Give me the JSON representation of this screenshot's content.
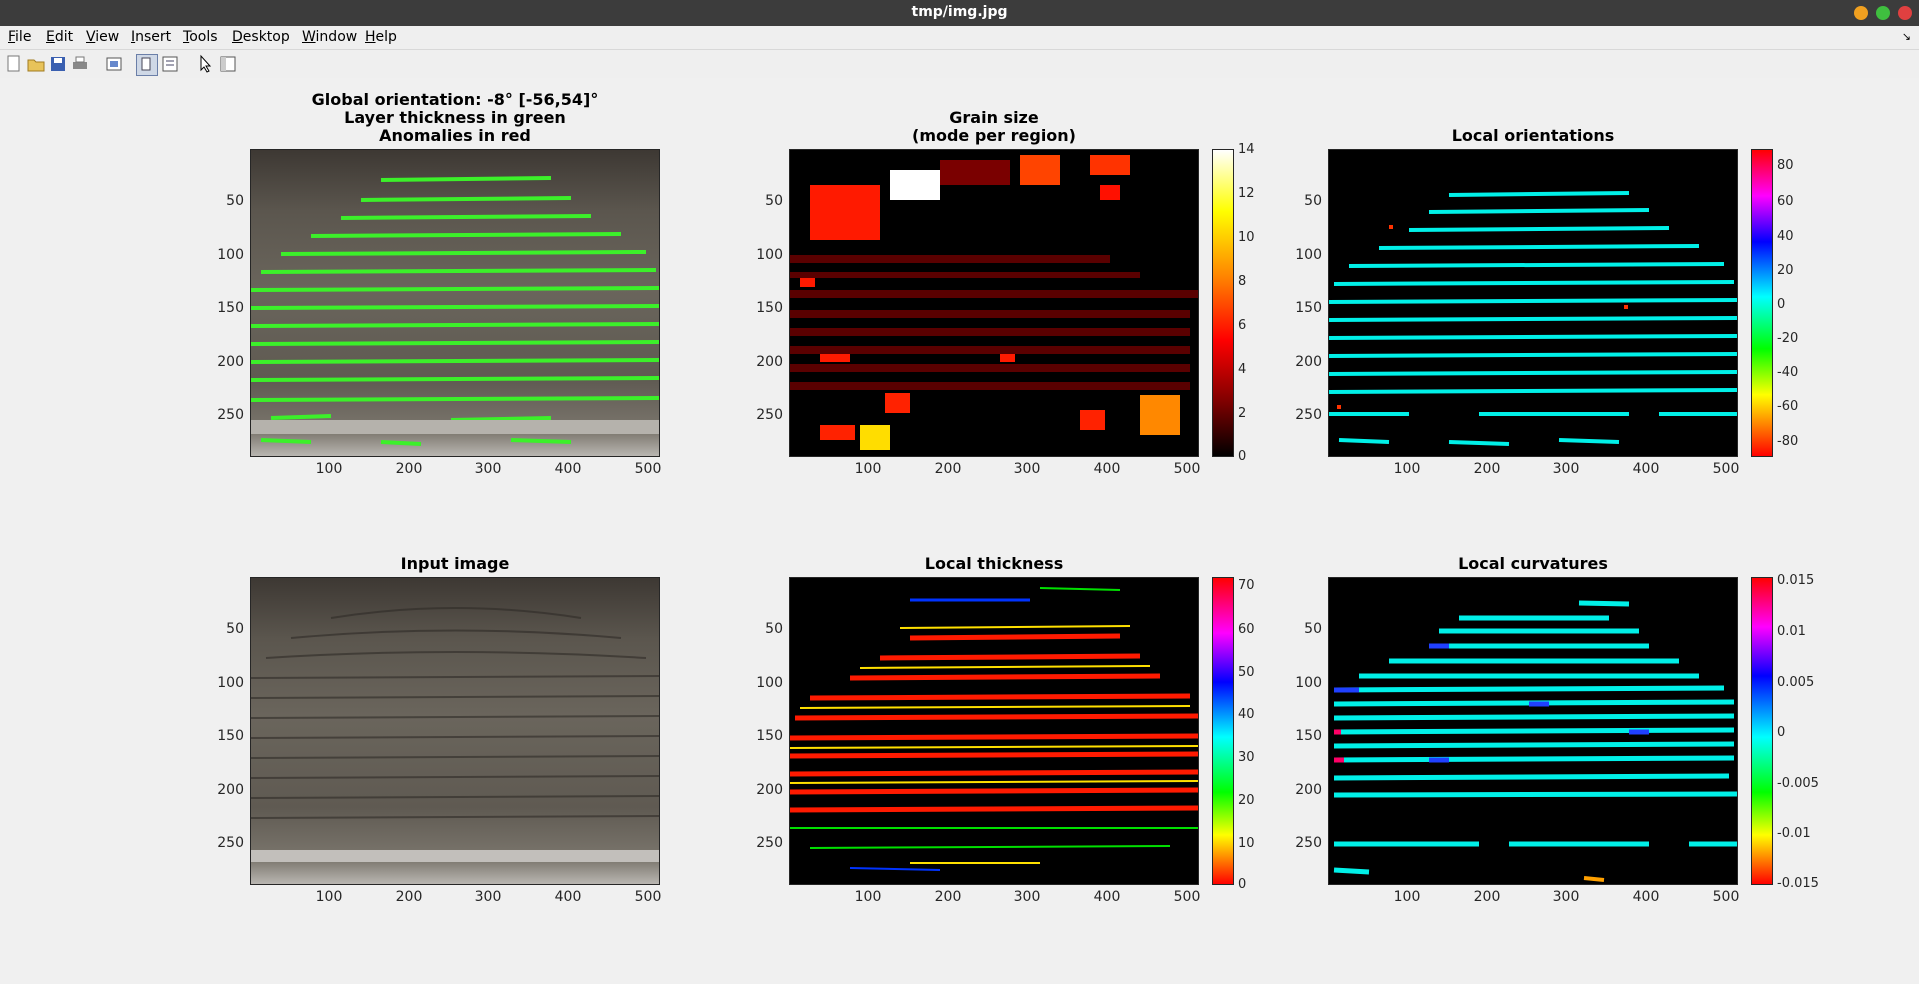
{
  "window": {
    "title": "tmp/img.jpg"
  },
  "menu": [
    "File",
    "Edit",
    "View",
    "Insert",
    "Tools",
    "Desktop",
    "Window",
    "Help"
  ],
  "toolbar": {
    "icons": [
      "new-figure-icon",
      "open-file-icon",
      "save-icon",
      "print-icon",
      "link-plot-icon",
      "dock-icon",
      "property-editor-icon",
      "pointer-icon",
      "browser-icon"
    ]
  },
  "axes": {
    "top_left": {
      "title_lines": [
        "Global orientation: -8° [-56,54]°",
        "Layer thickness in green",
        "Anomalies in red"
      ]
    },
    "top_mid": {
      "title_lines": [
        "Grain size",
        "(mode per region)"
      ],
      "colorbar_ticks": [
        "14",
        "12",
        "10",
        "8",
        "6",
        "4",
        "2",
        "0"
      ]
    },
    "top_right": {
      "title_lines": [
        "Local orientations"
      ],
      "colorbar_ticks": [
        "80",
        "60",
        "40",
        "20",
        "0",
        "-20",
        "-40",
        "-60",
        "-80"
      ]
    },
    "bot_left": {
      "title_lines": [
        "Input image"
      ]
    },
    "bot_mid": {
      "title_lines": [
        "Local thickness"
      ],
      "colorbar_ticks": [
        "70",
        "60",
        "50",
        "40",
        "30",
        "20",
        "10",
        "0"
      ]
    },
    "bot_right": {
      "title_lines": [
        "Local curvatures"
      ],
      "colorbar_ticks": [
        "0.015",
        "0.01",
        "0.005",
        "0",
        "-0.005",
        "-0.01",
        "-0.015"
      ]
    }
  },
  "ticks": {
    "y": [
      "50",
      "100",
      "150",
      "200",
      "250"
    ],
    "x": [
      "100",
      "200",
      "300",
      "400",
      "500"
    ]
  },
  "colors": {
    "titlebar": "#3c3c3c",
    "figure_bg": "#f0f0f0",
    "green_overlay": "#3cf02a",
    "cyan_lines": "#00f0e8"
  }
}
